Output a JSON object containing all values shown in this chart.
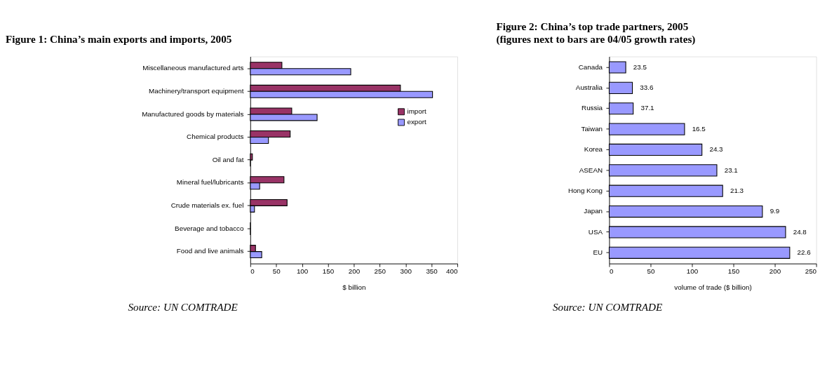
{
  "chart_data": [
    {
      "type": "bar",
      "orientation": "horizontal",
      "title": "Figure 1: China’s main exports and imports, 2005",
      "xlabel": "$ billion",
      "categories": [
        "Miscellaneous manufactured arts",
        "Machinery/transport equipment",
        "Manufactured goods by materials",
        "Chemical products",
        "Oil and fat",
        "Mineral fuel/lubricants",
        "Crude materials ex. fuel",
        "Beverage and tobacco",
        "Food and live animals"
      ],
      "series": [
        {
          "name": "import",
          "color": "#993366",
          "values": [
            61,
            290,
            80,
            77,
            4,
            65,
            71,
            0,
            10
          ]
        },
        {
          "name": "export",
          "color": "#9999ff",
          "values": [
            194,
            352,
            129,
            35,
            0,
            18,
            8,
            0,
            22
          ]
        }
      ],
      "xlim": [
        0,
        400
      ],
      "xticks": [
        0,
        50,
        100,
        150,
        200,
        250,
        300,
        350,
        400
      ],
      "grid": false,
      "legend": "right",
      "annotations": [
        "Source: UN COMTRADE"
      ]
    },
    {
      "type": "bar",
      "orientation": "horizontal",
      "title": "Figure 2: China’s top trade partners, 2005",
      "subtitle": "(figures next to bars are 04/05 growth rates)",
      "xlabel": "volume of trade ($ billion)",
      "categories": [
        "Canada",
        "Australia",
        "Russia",
        "Taiwan",
        "Korea",
        "ASEAN",
        "Hong Kong",
        "Japan",
        "USA",
        "EU"
      ],
      "series": [
        {
          "color": "#9999ff",
          "values": [
            20,
            28,
            29,
            91,
            112,
            130,
            137,
            185,
            213,
            218
          ]
        }
      ],
      "xlim": [
        0,
        250
      ],
      "xticks": [
        0,
        50,
        100,
        150,
        200,
        250
      ],
      "grid": false,
      "annotations": [
        {
          "text": "23.5",
          "x": 20,
          "y": "Canada"
        },
        {
          "text": "33.6",
          "x": 28,
          "y": "Australia"
        },
        {
          "text": "37.1",
          "x": 29,
          "y": "Russia"
        },
        {
          "text": "16.5",
          "x": 91,
          "y": "Taiwan"
        },
        {
          "text": "24.3",
          "x": 112,
          "y": "Korea"
        },
        {
          "text": "23.1",
          "x": 130,
          "y": "ASEAN"
        },
        {
          "text": "21.3",
          "x": 137,
          "y": "Hong Kong"
        },
        {
          "text": "9.9",
          "x": 185,
          "y": "Japan"
        },
        {
          "text": "24.8",
          "x": 213,
          "y": "USA"
        },
        {
          "text": "22.6",
          "x": 218,
          "y": "EU"
        },
        "Source: UN COMTRADE"
      ]
    }
  ]
}
